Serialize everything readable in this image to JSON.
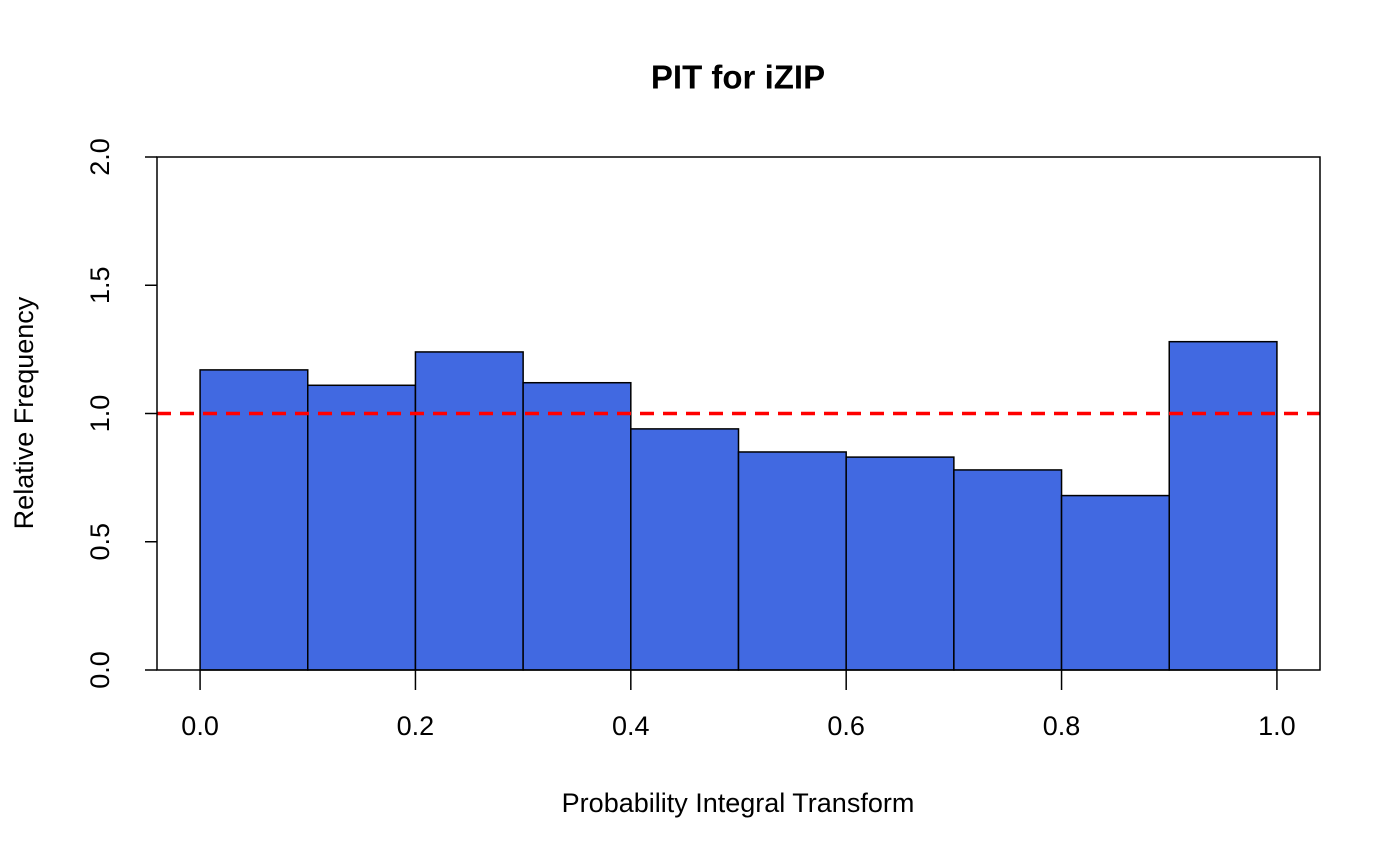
{
  "chart_data": {
    "type": "histogram",
    "title": "PIT for iZIP",
    "xlabel": "Probability Integral Transform",
    "ylabel": "Relative Frequency",
    "bins": [
      0,
      0.1,
      0.2,
      0.3,
      0.4,
      0.5,
      0.6,
      0.7,
      0.8,
      0.9,
      1
    ],
    "values": [
      1.17,
      1.11,
      1.24,
      1.12,
      0.94,
      0.85,
      0.83,
      0.78,
      0.68,
      1.28
    ],
    "color": "#4169e1",
    "xlim": [
      -0.04,
      1.04
    ],
    "xticks": [
      {
        "value": 0,
        "label": "0.0"
      },
      0.2,
      0.4,
      0.6,
      0.8,
      {
        "value": 1,
        "label": "1.0"
      }
    ],
    "ylim": [
      0,
      2
    ],
    "yticks": [
      {
        "value": 0,
        "label": "0.0"
      },
      0.5,
      {
        "value": 1,
        "label": "1.0"
      },
      1.5,
      {
        "value": 2,
        "label": "2.0"
      }
    ],
    "hline": {
      "value": 1,
      "color": "#ff0000"
    },
    "grid": false
  }
}
